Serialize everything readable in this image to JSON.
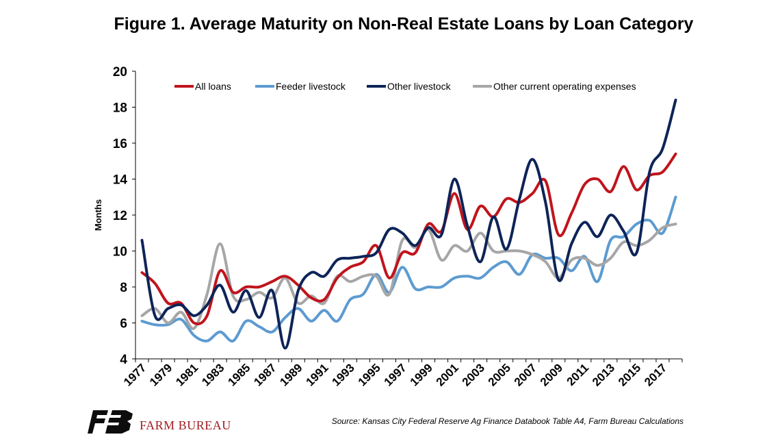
{
  "chart_data": {
    "type": "line",
    "title": "Figure 1. Average Maturity on Non-Real Estate Loans by Loan Category",
    "ylabel": "Months",
    "xlabel": "",
    "ylim": [
      4,
      20
    ],
    "yticks": [
      "4",
      "6",
      "8",
      "10",
      "12",
      "14",
      "16",
      "18",
      "20"
    ],
    "x": [
      1977,
      1978,
      1979,
      1980,
      1981,
      1982,
      1983,
      1984,
      1985,
      1986,
      1987,
      1988,
      1989,
      1990,
      1991,
      1992,
      1993,
      1994,
      1995,
      1996,
      1997,
      1998,
      1999,
      2000,
      2001,
      2002,
      2003,
      2004,
      2005,
      2006,
      2007,
      2008,
      2009,
      2010,
      2011,
      2012,
      2013,
      2014,
      2015,
      2016,
      2017,
      2018
    ],
    "xtick_labels": [
      "1977",
      "1979",
      "1981",
      "1983",
      "1985",
      "1987",
      "1989",
      "1991",
      "1993",
      "1995",
      "1997",
      "1999",
      "2001",
      "2003",
      "2005",
      "2007",
      "2009",
      "2011",
      "2013",
      "2015",
      "2017"
    ],
    "grid": false,
    "legend_position": "top",
    "series": [
      {
        "name": "All loans",
        "color": "#c0141c",
        "values": [
          8.8,
          8.2,
          7.1,
          7.1,
          6.0,
          6.4,
          8.9,
          7.7,
          8.0,
          8.0,
          8.3,
          8.6,
          8.1,
          7.4,
          7.3,
          8.5,
          9.1,
          9.4,
          10.3,
          8.5,
          9.9,
          9.9,
          11.5,
          11.1,
          13.2,
          11.2,
          12.5,
          11.9,
          12.9,
          12.7,
          13.2,
          13.9,
          10.9,
          12.1,
          13.7,
          14.0,
          13.3,
          14.7,
          13.4,
          14.2,
          14.4,
          15.4
        ]
      },
      {
        "name": "Feeder livestock",
        "color": "#5d9bd1",
        "values": [
          6.1,
          5.9,
          5.9,
          6.2,
          5.3,
          5.0,
          5.5,
          5.0,
          6.1,
          5.8,
          5.5,
          6.3,
          6.8,
          6.1,
          6.7,
          6.1,
          7.3,
          7.6,
          8.7,
          7.7,
          9.1,
          7.9,
          8.0,
          8.0,
          8.5,
          8.6,
          8.5,
          9.1,
          9.4,
          8.7,
          9.8,
          9.6,
          9.6,
          8.9,
          9.7,
          8.3,
          10.6,
          10.8,
          11.5,
          11.7,
          11.0,
          13.0
        ]
      },
      {
        "name": "Other livestock",
        "color": "#0d2458",
        "values": [
          10.6,
          6.4,
          6.8,
          7.0,
          6.4,
          7.0,
          8.1,
          6.6,
          7.8,
          6.3,
          7.8,
          4.6,
          7.8,
          8.8,
          8.6,
          9.5,
          9.6,
          9.7,
          9.9,
          11.2,
          11.0,
          10.3,
          11.3,
          10.9,
          14.0,
          11.4,
          9.4,
          11.9,
          10.1,
          12.9,
          15.1,
          12.7,
          8.4,
          10.4,
          11.6,
          10.8,
          12.0,
          11.1,
          9.9,
          14.4,
          15.7,
          18.4
        ]
      },
      {
        "name": "Other current operating expenses",
        "color": "#a6a6a6",
        "values": [
          6.4,
          6.8,
          6.0,
          6.6,
          5.7,
          7.6,
          10.4,
          7.5,
          7.3,
          7.7,
          7.4,
          8.5,
          7.1,
          7.5,
          7.1,
          8.6,
          8.3,
          8.6,
          8.6,
          7.6,
          10.6,
          10.2,
          11.2,
          9.5,
          10.3,
          10.0,
          11.0,
          10.0,
          10.0,
          10.0,
          9.8,
          9.4,
          8.5,
          9.5,
          9.6,
          9.2,
          9.6,
          10.5,
          10.3,
          10.6,
          11.3,
          11.5
        ]
      }
    ]
  },
  "footer": {
    "logo_text": "FARM BUREAU",
    "source": "Source: Kansas City Federal Reserve Ag Finance Databook Table A4, Farm Bureau Calculations"
  },
  "colors": {
    "logo": "#a01a20",
    "axis": "#000000"
  }
}
